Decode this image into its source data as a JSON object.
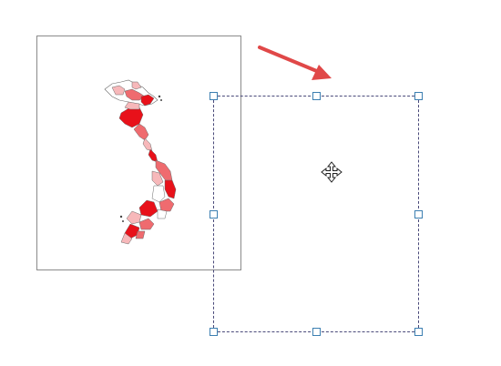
{
  "scene": {
    "source_object": "vietnam-choropleth-map",
    "action": "drag-move",
    "cursor": "move-cursor-icon",
    "arrow_icon": "arrow-right-down-icon"
  },
  "colors": {
    "frame_border": "#8a8a8a",
    "selection_border": "#4a4a7a",
    "handle_border": "#3c7fb1",
    "arrow": "#e04848",
    "map_dark": "#e8111a",
    "map_mid": "#ef6b6f",
    "map_light": "#f7b8ba",
    "map_outline": "#6a6a6a"
  }
}
